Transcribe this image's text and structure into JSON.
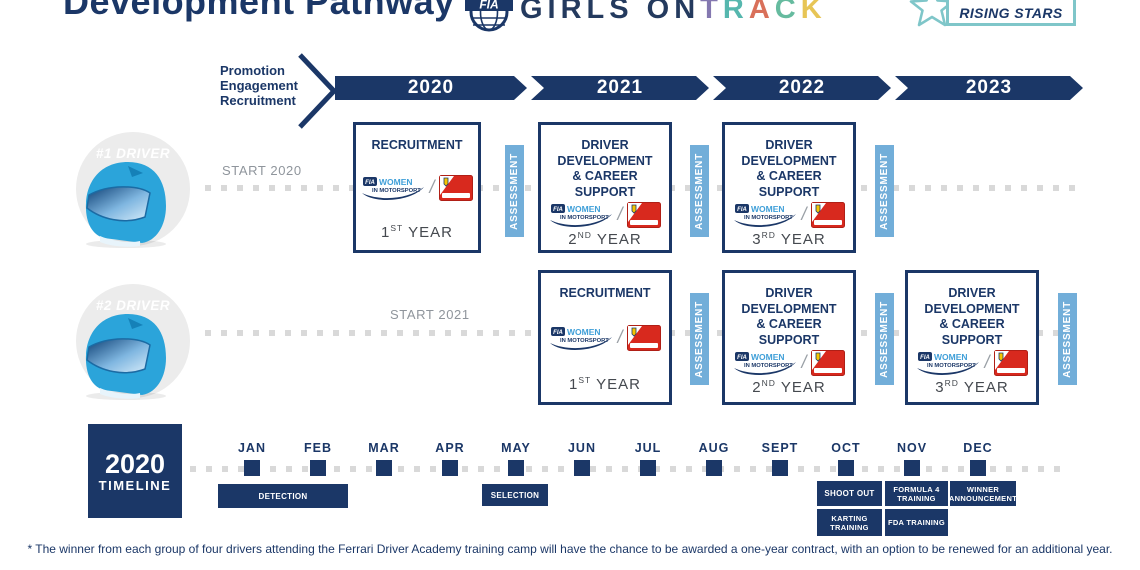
{
  "header": {
    "title": "Development Pathway",
    "fia": "FIA",
    "girls_on": "GIRLS ON ",
    "track_letters": [
      {
        "ch": "T",
        "color": "#8478b0"
      },
      {
        "ch": "R",
        "color": "#56b7ae"
      },
      {
        "ch": "A",
        "color": "#d9705a"
      },
      {
        "ch": "C",
        "color": "#66bb9f"
      },
      {
        "ch": "K",
        "color": "#e7c556"
      }
    ],
    "rising_stars": "RISING STARS"
  },
  "pathway": {
    "intro": [
      "Promotion",
      "Engagement",
      "Recruitment"
    ],
    "years": [
      "2020",
      "2021",
      "2022",
      "2023"
    ],
    "assessment_label": "ASSESSMENT",
    "logos": {
      "fia_badge": "FIA",
      "women": "WOMEN",
      "in_motorsport": "IN MOTORSPORT",
      "separator": "/"
    },
    "drivers": [
      {
        "label": "#1 DRIVER",
        "start": "START 2020",
        "boxes": [
          {
            "title": "RECRUITMENT",
            "ordinal": "1",
            "sup": "ST",
            "year_word": "YEAR"
          },
          {
            "title": "DRIVER\nDEVELOPMENT\n& CAREER SUPPORT",
            "ordinal": "2",
            "sup": "ND",
            "year_word": "YEAR"
          },
          {
            "title": "DRIVER\nDEVELOPMENT\n& CAREER SUPPORT",
            "ordinal": "3",
            "sup": "RD",
            "year_word": "YEAR"
          }
        ]
      },
      {
        "label": "#2 DRIVER",
        "start": "START 2021",
        "boxes": [
          {
            "title": "RECRUITMENT",
            "ordinal": "1",
            "sup": "ST",
            "year_word": "YEAR"
          },
          {
            "title": "DRIVER\nDEVELOPMENT\n& CAREER SUPPORT",
            "ordinal": "2",
            "sup": "ND",
            "year_word": "YEAR"
          },
          {
            "title": "DRIVER\nDEVELOPMENT\n& CAREER SUPPORT",
            "ordinal": "3",
            "sup": "RD",
            "year_word": "YEAR"
          }
        ]
      }
    ]
  },
  "timeline": {
    "year": "2020",
    "title": "TIMELINE",
    "months": [
      "JAN",
      "FEB",
      "MAR",
      "APR",
      "MAY",
      "JUN",
      "JUL",
      "AUG",
      "SEPT",
      "OCT",
      "NOV",
      "DEC"
    ],
    "milestones": [
      "DETECTION",
      "SELECTION",
      "SHOOT OUT",
      "KARTING TRAINING",
      "FORMULA 4 TRAINING",
      "FDA TRAINING",
      "WINNER ANNOUNCEMENT"
    ]
  },
  "footnote": "* The winner from each group of four drivers attending the Ferrari Driver Academy training camp will have the chance to be awarded a one-year contract, with an option to be renewed for an additional year.",
  "colors": {
    "navy": "#1b3767",
    "assessment_blue": "#72aed9",
    "helmet_blue": "#2ba4da",
    "teal": "#7fc6c9",
    "dot_gray": "#d9d9d9"
  }
}
